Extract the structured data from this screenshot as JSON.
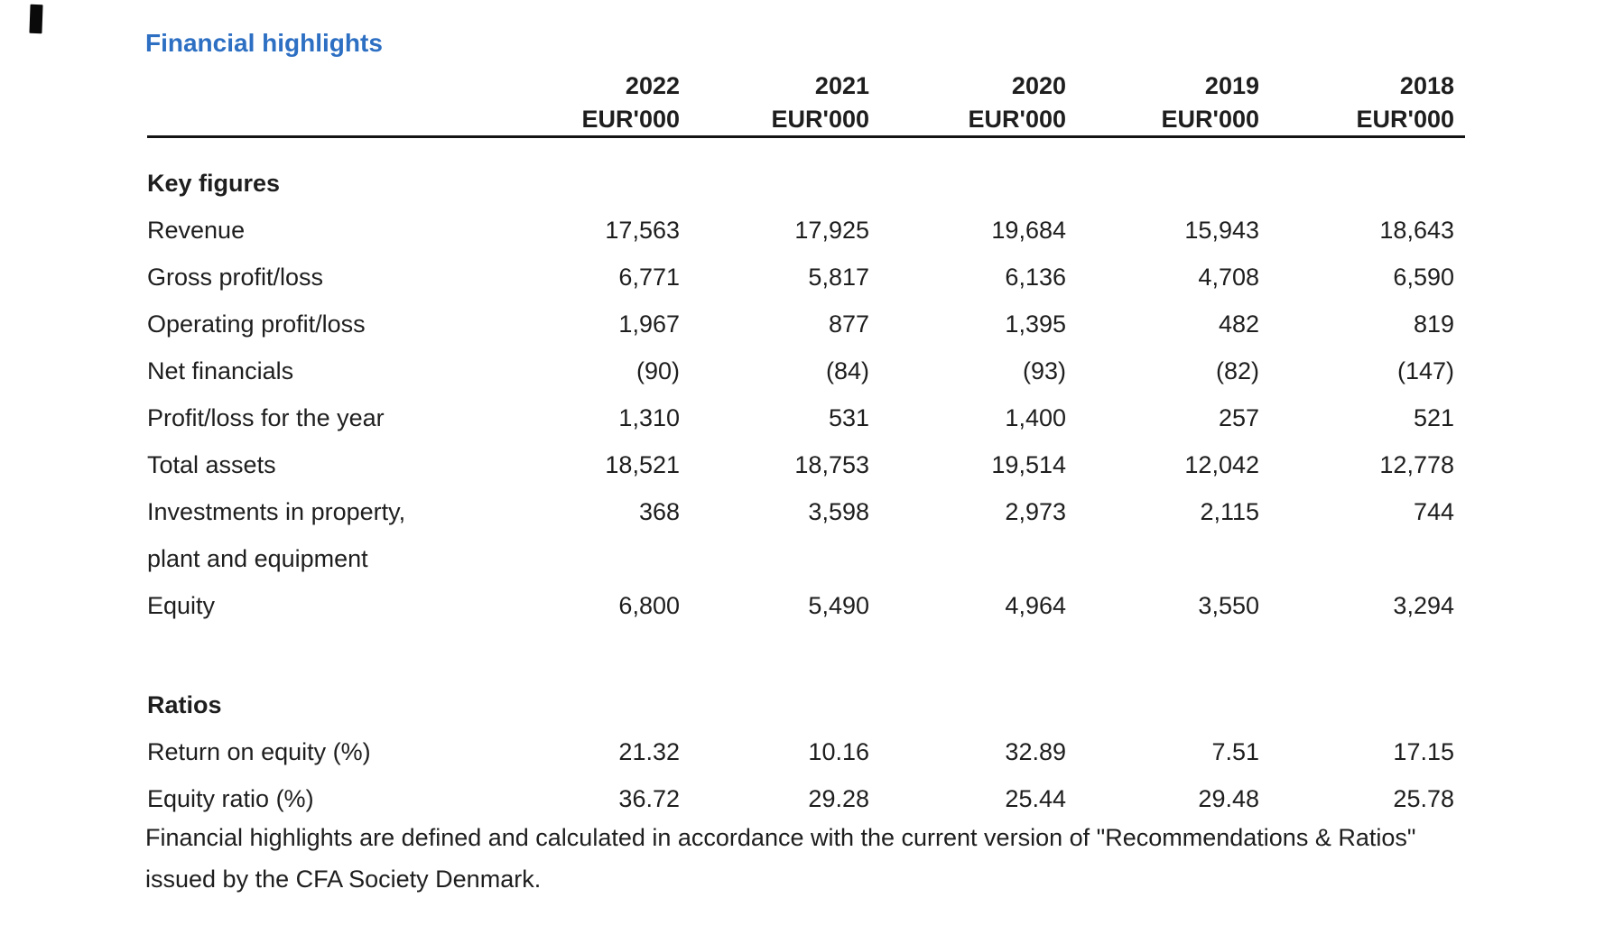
{
  "page": {
    "title": "Financial highlights",
    "title_color": "#2d6fc3",
    "text_color": "#1e1e1e",
    "rule_color": "#141414",
    "background_color": "#ffffff"
  },
  "table": {
    "unit_label": "EUR'000",
    "years": [
      "2022",
      "2021",
      "2020",
      "2019",
      "2018"
    ],
    "sections": [
      {
        "header": "Key figures",
        "rows": [
          {
            "label": "Revenue",
            "values": [
              "17,563",
              "17,925",
              "19,684",
              "15,943",
              "18,643"
            ]
          },
          {
            "label": "Gross profit/loss",
            "values": [
              "6,771",
              "5,817",
              "6,136",
              "4,708",
              "6,590"
            ]
          },
          {
            "label": "Operating profit/loss",
            "values": [
              "1,967",
              "877",
              "1,395",
              "482",
              "819"
            ]
          },
          {
            "label": "Net financials",
            "values": [
              "(90)",
              "(84)",
              "(93)",
              "(82)",
              "(147)"
            ]
          },
          {
            "label": "Profit/loss for the year",
            "values": [
              "1,310",
              "531",
              "1,400",
              "257",
              "521"
            ]
          },
          {
            "label": "Total assets",
            "values": [
              "18,521",
              "18,753",
              "19,514",
              "12,042",
              "12,778"
            ]
          },
          {
            "label": "Investments in property, plant and equipment",
            "values": [
              "368",
              "3,598",
              "2,973",
              "2,115",
              "744"
            ]
          },
          {
            "label": "Equity",
            "values": [
              "6,800",
              "5,490",
              "4,964",
              "3,550",
              "3,294"
            ]
          }
        ]
      },
      {
        "header": "Ratios",
        "rows": [
          {
            "label": "Return on equity (%)",
            "values": [
              "21.32",
              "10.16",
              "32.89",
              "7.51",
              "17.15"
            ]
          },
          {
            "label": "Equity ratio (%)",
            "values": [
              "36.72",
              "29.28",
              "25.44",
              "29.48",
              "25.78"
            ]
          }
        ]
      }
    ]
  },
  "footnote": "Financial highlights are defined and calculated in accordance with the current version of \"Recommendations & Ratios\" issued by the CFA Society Denmark."
}
